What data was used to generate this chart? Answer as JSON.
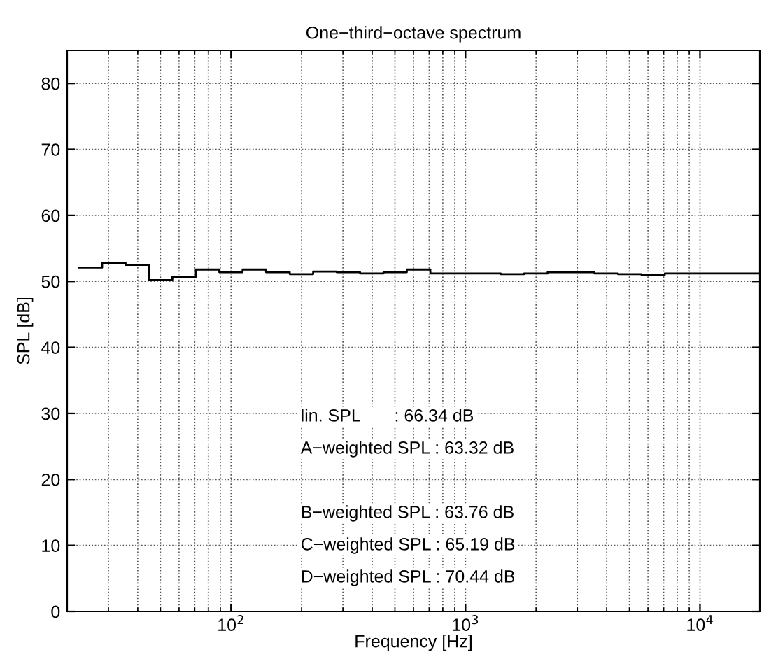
{
  "chart_data": {
    "type": "step",
    "title": "One−third−octave spectrum",
    "xlabel": "Frequency [Hz]",
    "ylabel": "SPL [dB]",
    "log": "x",
    "grid": true,
    "line_style": "solid",
    "legend": false,
    "xlim": [
      20,
      18000
    ],
    "ylim": [
      0,
      85
    ],
    "xticks": [
      {
        "value": 100,
        "label": "10$^{2}$"
      },
      {
        "value": 1000,
        "label": "10$^{3}$"
      },
      {
        "value": 10000,
        "label": "10$^{4}$"
      }
    ],
    "yticks": [
      0,
      10,
      20,
      30,
      40,
      50,
      60,
      70,
      80
    ],
    "series": [
      {
        "color": "#000000",
        "x": [
          22.4,
          28.2,
          35.5,
          44.7,
          56.2,
          70.8,
          89.1,
          112,
          141,
          178,
          224,
          282,
          355,
          447,
          562,
          708,
          891,
          1122,
          1413,
          1778,
          2239,
          2818,
          3548,
          4467,
          5623,
          7079,
          8913,
          11220,
          14125,
          18000
        ],
        "values": [
          52.1,
          52.8,
          52.5,
          50.2,
          50.7,
          51.8,
          51.4,
          51.8,
          51.4,
          51.1,
          51.5,
          51.4,
          51.2,
          51.4,
          51.8,
          51.2,
          51.2,
          51.2,
          51.1,
          51.2,
          51.4,
          51.4,
          51.2,
          51.1,
          51.0,
          51.2,
          51.2,
          51.2,
          51.2,
          51.2
        ]
      }
    ],
    "annotations": [
      "lin. SPL       : 66.34 dB",
      "A−weighted SPL : 63.32 dB",
      "B−weighted SPL : 63.76 dB",
      "C−weighted SPL : 65.19 dB",
      "D−weighted SPL : 70.44 dB"
    ]
  }
}
